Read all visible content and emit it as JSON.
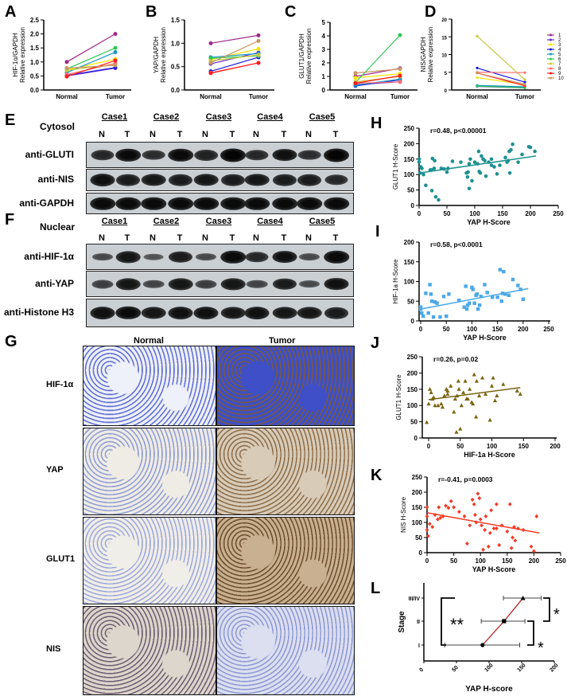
{
  "panel_labels": [
    "A",
    "B",
    "C",
    "D",
    "E",
    "F",
    "G",
    "H",
    "I",
    "J",
    "K",
    "L"
  ],
  "colors": [
    "#a0288c",
    "#6a2ad0",
    "#f2e600",
    "#1a1adc",
    "#1a96c8",
    "#2ec850",
    "#c8c83c",
    "#ff7070",
    "#ff1a1a",
    "#c89664"
  ],
  "blots": {
    "E": {
      "compartment": "Cytosol",
      "cases": [
        "Case1",
        "Case2",
        "Case3",
        "Case4",
        "Case5"
      ],
      "lanes": [
        "N",
        "T",
        "N",
        "T",
        "N",
        "T",
        "N",
        "T",
        "N",
        "T"
      ],
      "rows": [
        {
          "label": "anti-GLUTI",
          "intensity": [
            0.7,
            0.95,
            0.65,
            0.95,
            0.75,
            1,
            0.7,
            0.9,
            0.65,
            1
          ]
        },
        {
          "label": "anti-NIS",
          "intensity": [
            0.9,
            0.8,
            0.85,
            0.8,
            0.85,
            0.8,
            0.85,
            0.8,
            0.8,
            0.7
          ]
        },
        {
          "label": "anti-GAPDH",
          "intensity": [
            0.95,
            0.95,
            0.95,
            0.95,
            0.95,
            0.95,
            0.95,
            0.95,
            0.95,
            0.95
          ]
        }
      ]
    },
    "F": {
      "compartment": "Nuclear",
      "cases": [
        "Case1",
        "Case2",
        "Case3",
        "Case4",
        "Case5"
      ],
      "lanes": [
        "N",
        "T",
        "N",
        "T",
        "N",
        "T",
        "N",
        "T",
        "N",
        "T"
      ],
      "rows": [
        {
          "label": "anti-HIF-1α",
          "intensity": [
            0.4,
            0.85,
            0.3,
            0.8,
            0.4,
            0.95,
            0.7,
            0.9,
            0.4,
            0.95
          ]
        },
        {
          "label": "anti-YAP",
          "intensity": [
            0.5,
            0.85,
            0.45,
            0.85,
            0.5,
            0.85,
            0.45,
            0.8,
            0.4,
            0.9
          ]
        },
        {
          "label": "anti-Histone H3",
          "intensity": [
            0.9,
            0.95,
            0.85,
            0.9,
            0.9,
            0.85,
            0.9,
            0.85,
            0.85,
            0.8
          ]
        }
      ]
    }
  },
  "ihc": {
    "columns": [
      "Normal",
      "Tumor"
    ],
    "rows": [
      "HIF-1α",
      "YAP",
      "GLUT1",
      "NIS"
    ]
  },
  "chart_data": [
    {
      "id": "A",
      "type": "line",
      "ylabel": [
        "HIF-1α/GAPDH",
        "Relative expression"
      ],
      "categories": [
        "Normal",
        "Tumor"
      ],
      "ylim": [
        0,
        2.5
      ],
      "yticks": [
        "0.0",
        "0.5",
        "1.0",
        "1.5",
        "2.0",
        "2.5"
      ],
      "series": [
        [
          1.0,
          2.0
        ],
        [
          0.5,
          0.78
        ],
        [
          0.72,
          1.1
        ],
        [
          0.52,
          0.8
        ],
        [
          0.62,
          1.35
        ],
        [
          0.75,
          1.5
        ],
        [
          0.7,
          0.92
        ],
        [
          0.55,
          0.95
        ],
        [
          0.48,
          1.05
        ],
        [
          0.78,
          0.88
        ]
      ]
    },
    {
      "id": "B",
      "type": "line",
      "ylabel": [
        "YAP/GAPDH",
        "Relative expression"
      ],
      "categories": [
        "Normal",
        "Tumor"
      ],
      "ylim": [
        0,
        1.5
      ],
      "yticks": [
        "0.0",
        "0.5",
        "1.0",
        "1.5"
      ],
      "series": [
        [
          1.0,
          1.17
        ],
        [
          0.56,
          0.8
        ],
        [
          0.65,
          0.88
        ],
        [
          0.4,
          0.7
        ],
        [
          0.7,
          0.78
        ],
        [
          0.68,
          0.73
        ],
        [
          0.62,
          0.75
        ],
        [
          0.37,
          0.58
        ],
        [
          0.36,
          0.58
        ],
        [
          0.58,
          1.05
        ]
      ]
    },
    {
      "id": "C",
      "type": "line",
      "ylabel": [
        "GLUT1/GAPDH",
        "Relative expression"
      ],
      "categories": [
        "Normal",
        "Tumor"
      ],
      "ylim": [
        0,
        5
      ],
      "yticks": [
        "0",
        "1",
        "2",
        "3",
        "4",
        "5"
      ],
      "series": [
        [
          1.0,
          1.6
        ],
        [
          0.4,
          0.6
        ],
        [
          0.9,
          1.2
        ],
        [
          0.3,
          0.75
        ],
        [
          0.35,
          0.8
        ],
        [
          0.55,
          4.05
        ],
        [
          0.6,
          1.0
        ],
        [
          0.5,
          0.6
        ],
        [
          0.5,
          1.05
        ],
        [
          1.25,
          1.55
        ]
      ]
    },
    {
      "id": "D",
      "type": "line",
      "ylabel": [
        "NIS/GAPDH",
        "Relative expression"
      ],
      "categories": [
        "Normal",
        "Tumor"
      ],
      "ylim": [
        0,
        20
      ],
      "yticks": [
        "0",
        "5",
        "10",
        "15",
        "20"
      ],
      "series": [
        [
          1.2,
          0.8
        ],
        [
          1.0,
          0.6
        ],
        [
          3.5,
          1.5
        ],
        [
          6.2,
          2.2
        ],
        [
          1.3,
          0.9
        ],
        [
          1.1,
          0.6
        ],
        [
          15.2,
          2.9
        ],
        [
          5.0,
          4.9
        ],
        [
          4.8,
          1.2
        ],
        [
          4.8,
          1.6
        ]
      ],
      "legend": [
        "1",
        "2",
        "3",
        "4",
        "5",
        "6",
        "7",
        "8",
        "9",
        "10"
      ]
    },
    {
      "id": "H",
      "type": "scatter",
      "annotation": "r=0.48, p<0.00001",
      "xlabel": "YAP H-Score",
      "ylabel": "GLUT1 H-Score",
      "xlim": [
        0,
        250
      ],
      "ylim": [
        0,
        250
      ],
      "xticks": [
        0,
        50,
        100,
        150,
        200,
        250
      ],
      "yticks": [
        0,
        50,
        100,
        150,
        200,
        250
      ],
      "color": "#1e9090",
      "marker": "circle",
      "fit": [
        [
          0,
          105
        ],
        [
          210,
          160
        ]
      ],
      "points": [
        [
          0,
          150
        ],
        [
          0,
          140
        ],
        [
          2,
          105
        ],
        [
          3,
          125
        ],
        [
          5,
          120
        ],
        [
          8,
          100
        ],
        [
          12,
          65
        ],
        [
          20,
          115
        ],
        [
          22,
          115
        ],
        [
          23,
          48
        ],
        [
          24,
          152
        ],
        [
          27,
          120
        ],
        [
          28,
          145
        ],
        [
          30,
          28
        ],
        [
          35,
          18
        ],
        [
          40,
          120
        ],
        [
          45,
          118
        ],
        [
          50,
          108
        ],
        [
          52,
          120
        ],
        [
          60,
          143
        ],
        [
          75,
          140
        ],
        [
          85,
          105
        ],
        [
          87,
          92
        ],
        [
          88,
          108
        ],
        [
          90,
          55
        ],
        [
          90,
          135
        ],
        [
          92,
          150
        ],
        [
          95,
          80
        ],
        [
          100,
          140
        ],
        [
          105,
          135
        ],
        [
          107,
          175
        ],
        [
          108,
          110
        ],
        [
          110,
          105
        ],
        [
          112,
          160
        ],
        [
          115,
          150
        ],
        [
          118,
          145
        ],
        [
          120,
          95
        ],
        [
          125,
          140
        ],
        [
          130,
          150
        ],
        [
          135,
          125
        ],
        [
          140,
          102
        ],
        [
          145,
          130
        ],
        [
          155,
          155
        ],
        [
          158,
          140
        ],
        [
          162,
          175
        ],
        [
          163,
          105
        ],
        [
          165,
          180
        ],
        [
          168,
          198
        ],
        [
          178,
          140
        ],
        [
          185,
          165
        ],
        [
          197,
          190
        ],
        [
          200,
          188
        ],
        [
          208,
          175
        ],
        [
          160,
          145
        ],
        [
          130,
          130
        ]
      ]
    },
    {
      "id": "I",
      "type": "scatter",
      "annotation": "r=0.58, p<0.0001",
      "xlabel": "YAP H-Score",
      "ylabel": "HIF-1a H-Score",
      "xlim": [
        0,
        250
      ],
      "ylim": [
        0,
        200
      ],
      "xticks": [
        0,
        50,
        100,
        150,
        200,
        250
      ],
      "yticks": [
        0,
        50,
        100,
        150,
        200
      ],
      "color": "#4aa8e8",
      "marker": "square",
      "fit": [
        [
          0,
          30
        ],
        [
          210,
          82
        ]
      ],
      "points": [
        [
          0,
          35
        ],
        [
          0,
          30
        ],
        [
          2,
          20
        ],
        [
          5,
          12
        ],
        [
          10,
          70
        ],
        [
          15,
          20
        ],
        [
          18,
          92
        ],
        [
          20,
          68
        ],
        [
          22,
          50
        ],
        [
          25,
          10
        ],
        [
          28,
          48
        ],
        [
          32,
          45
        ],
        [
          38,
          10
        ],
        [
          45,
          62
        ],
        [
          50,
          12
        ],
        [
          55,
          68
        ],
        [
          75,
          52
        ],
        [
          85,
          35
        ],
        [
          88,
          88
        ],
        [
          90,
          30
        ],
        [
          92,
          40
        ],
        [
          95,
          45
        ],
        [
          100,
          85
        ],
        [
          102,
          80
        ],
        [
          105,
          45
        ],
        [
          108,
          65
        ],
        [
          110,
          68
        ],
        [
          112,
          30
        ],
        [
          115,
          40
        ],
        [
          118,
          62
        ],
        [
          125,
          92
        ],
        [
          130,
          72
        ],
        [
          140,
          60
        ],
        [
          150,
          60
        ],
        [
          155,
          130
        ],
        [
          158,
          50
        ],
        [
          160,
          70
        ],
        [
          162,
          125
        ],
        [
          165,
          68
        ],
        [
          172,
          65
        ],
        [
          180,
          105
        ],
        [
          190,
          90
        ],
        [
          195,
          80
        ],
        [
          200,
          55
        ]
      ]
    },
    {
      "id": "J",
      "type": "scatter",
      "annotation": "r=0.26, p=0.02",
      "xlabel": "HIF-1a H-Score",
      "ylabel": "GLUT1 H-Score",
      "xlim": [
        -5,
        200
      ],
      "ylim": [
        0,
        250
      ],
      "xticks": [
        0,
        50,
        100,
        150,
        200
      ],
      "yticks": [
        0,
        50,
        100,
        150,
        200,
        250
      ],
      "color": "#7a6410",
      "marker": "triangle",
      "fit": [
        [
          0,
          118
        ],
        [
          145,
          155
        ]
      ],
      "points": [
        [
          -3,
          48
        ],
        [
          0,
          105
        ],
        [
          2,
          150
        ],
        [
          4,
          140
        ],
        [
          6,
          120
        ],
        [
          8,
          125
        ],
        [
          10,
          100
        ],
        [
          15,
          100
        ],
        [
          20,
          105
        ],
        [
          22,
          95
        ],
        [
          25,
          130
        ],
        [
          28,
          150
        ],
        [
          30,
          145
        ],
        [
          35,
          160
        ],
        [
          40,
          80
        ],
        [
          42,
          120
        ],
        [
          44,
          18
        ],
        [
          45,
          130
        ],
        [
          47,
          175
        ],
        [
          48,
          150
        ],
        [
          50,
          28
        ],
        [
          52,
          100
        ],
        [
          55,
          140
        ],
        [
          58,
          175
        ],
        [
          62,
          120
        ],
        [
          65,
          150
        ],
        [
          68,
          110
        ],
        [
          70,
          105
        ],
        [
          72,
          195
        ],
        [
          75,
          65
        ],
        [
          76,
          175
        ],
        [
          80,
          130
        ],
        [
          85,
          185
        ],
        [
          90,
          135
        ],
        [
          97,
          55
        ],
        [
          100,
          160
        ],
        [
          102,
          185
        ],
        [
          105,
          115
        ],
        [
          108,
          130
        ],
        [
          118,
          165
        ],
        [
          140,
          145
        ],
        [
          145,
          135
        ],
        [
          60,
          120
        ],
        [
          30,
          135
        ]
      ]
    },
    {
      "id": "K",
      "type": "scatter",
      "annotation": "r=-0.41, p=0.0003",
      "xlabel": "YAP H-Score",
      "ylabel": "NIS  H-Score",
      "xlim": [
        0,
        250
      ],
      "ylim": [
        0,
        250
      ],
      "xticks": [
        0,
        50,
        100,
        150,
        200,
        250
      ],
      "yticks": [
        0,
        50,
        100,
        150,
        200,
        250
      ],
      "color": "#f03c28",
      "marker": "diamond",
      "fit": [
        [
          0,
          132
        ],
        [
          210,
          65
        ]
      ],
      "points": [
        [
          0,
          150
        ],
        [
          0,
          120
        ],
        [
          0,
          75
        ],
        [
          2,
          55
        ],
        [
          5,
          95
        ],
        [
          10,
          85
        ],
        [
          15,
          125
        ],
        [
          20,
          110
        ],
        [
          22,
          150
        ],
        [
          25,
          115
        ],
        [
          30,
          120
        ],
        [
          35,
          155
        ],
        [
          40,
          148
        ],
        [
          45,
          170
        ],
        [
          50,
          150
        ],
        [
          60,
          135
        ],
        [
          70,
          120
        ],
        [
          75,
          30
        ],
        [
          80,
          90
        ],
        [
          85,
          175
        ],
        [
          88,
          160
        ],
        [
          90,
          125
        ],
        [
          92,
          100
        ],
        [
          95,
          195
        ],
        [
          98,
          180
        ],
        [
          100,
          110
        ],
        [
          102,
          90
        ],
        [
          105,
          10
        ],
        [
          108,
          75
        ],
        [
          110,
          120
        ],
        [
          115,
          20
        ],
        [
          118,
          65
        ],
        [
          125,
          80
        ],
        [
          130,
          80
        ],
        [
          135,
          25
        ],
        [
          140,
          90
        ],
        [
          150,
          70
        ],
        [
          155,
          160
        ],
        [
          158,
          15
        ],
        [
          160,
          50
        ],
        [
          163,
          85
        ],
        [
          165,
          40
        ],
        [
          170,
          80
        ],
        [
          180,
          75
        ],
        [
          195,
          20
        ],
        [
          200,
          5
        ],
        [
          205,
          120
        ],
        [
          120,
          140
        ],
        [
          130,
          160
        ]
      ]
    },
    {
      "id": "L",
      "type": "errorbar",
      "xlabel": "YAP H-score",
      "ylabel": "Stage",
      "xlim": [
        0,
        200
      ],
      "xticks": [
        "0",
        "50",
        "100",
        "150",
        "200"
      ],
      "categories": [
        "I",
        "II",
        "III/IV"
      ],
      "means": [
        90,
        123,
        152
      ],
      "low": [
        32,
        88,
        122
      ],
      "high": [
        147,
        155,
        180
      ],
      "significance": [
        {
          "pair": [
            "I",
            "III/IV"
          ],
          "label": "**"
        },
        {
          "pair": [
            "II",
            "III/IV"
          ],
          "label": "*"
        },
        {
          "pair": [
            "I",
            "II"
          ],
          "label": "*"
        }
      ]
    }
  ]
}
